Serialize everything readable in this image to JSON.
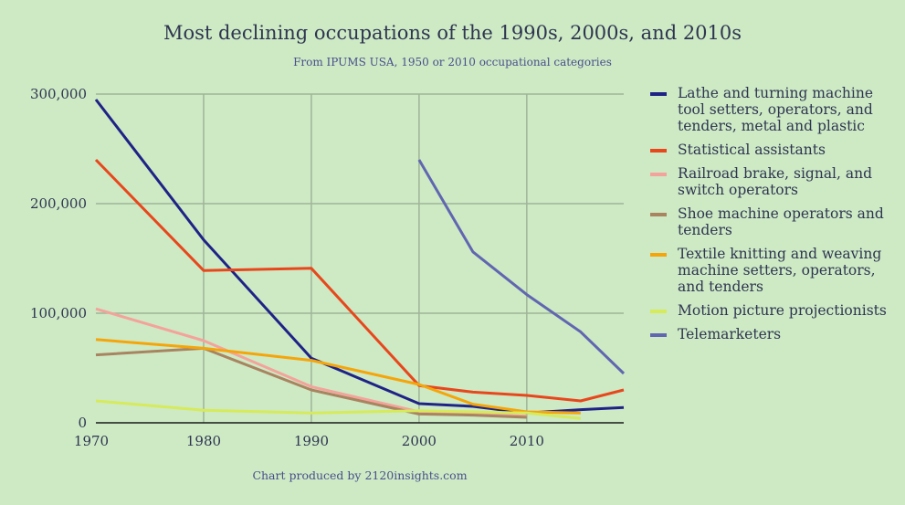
{
  "chart_data": {
    "type": "line",
    "title": "Most declining occupations of the 1990s, 2000s, and 2010s",
    "subtitle": "From IPUMS USA, 1950 or 2010 occupational categories",
    "credit": "Chart produced by 2120insights.com",
    "xlabel": "",
    "ylabel": "",
    "xlim": [
      1970,
      2019
    ],
    "ylim": [
      0,
      300000
    ],
    "x_ticks": [
      "1970",
      "1980",
      "1990",
      "2000",
      "2010"
    ],
    "y_ticks": [
      "0",
      "100,000",
      "200,000",
      "300,000"
    ],
    "grid": true,
    "legend_position": "right",
    "series": [
      {
        "name": "Lathe and turning machine tool setters, operators, and tenders, metal and plastic",
        "color": "#1f2386",
        "x": [
          1970,
          1980,
          1990,
          2000,
          2005,
          2010,
          2015,
          2019
        ],
        "values": [
          295000,
          167000,
          59000,
          17500,
          15000,
          9000,
          12000,
          14000
        ]
      },
      {
        "name": "Statistical assistants",
        "color": "#e8471c",
        "x": [
          1970,
          1980,
          1990,
          2000,
          2005,
          2010,
          2015,
          2019
        ],
        "values": [
          240000,
          139000,
          141000,
          34000,
          28000,
          25000,
          20000,
          30000
        ]
      },
      {
        "name": "Railroad brake, signal, and switch operators",
        "color": "#f4a39a",
        "x": [
          1970,
          1980,
          1990,
          2000,
          2005,
          2010
        ],
        "values": [
          104000,
          75000,
          33000,
          10000,
          8000,
          6000
        ]
      },
      {
        "name": "Shoe machine operators and tenders",
        "color": "#a88460",
        "x": [
          1970,
          1980,
          1990,
          2000,
          2005,
          2010
        ],
        "values": [
          62000,
          68000,
          30000,
          8000,
          7000,
          5000
        ]
      },
      {
        "name": "Textile knitting and weaving machine setters, operators, and tenders",
        "color": "#f5a50a",
        "x": [
          1970,
          1980,
          1990,
          2000,
          2005,
          2010,
          2015
        ],
        "values": [
          76000,
          68000,
          57000,
          35000,
          17000,
          10000,
          9000
        ]
      },
      {
        "name": "Motion picture projectionists",
        "color": "#d6ea5a",
        "x": [
          1970,
          1980,
          1990,
          2000,
          2005,
          2010,
          2015
        ],
        "values": [
          20000,
          11500,
          9000,
          11000,
          10000,
          9000,
          4000
        ]
      },
      {
        "name": "Telemarketers",
        "color": "#6166b0",
        "x": [
          2000,
          2005,
          2010,
          2015,
          2019
        ],
        "values": [
          240000,
          156000,
          117000,
          83000,
          45000
        ]
      }
    ]
  }
}
